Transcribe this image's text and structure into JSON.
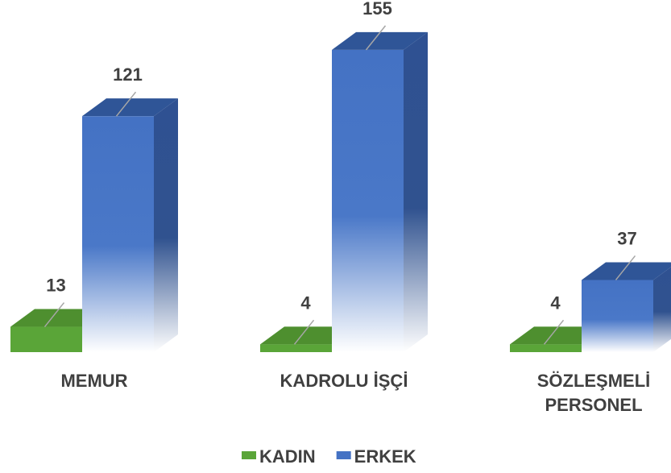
{
  "chart_data": {
    "type": "bar3d",
    "categories": [
      "MEMUR",
      "KADROLU İŞÇİ",
      "SÖZLEŞMELİ PERSONEL"
    ],
    "series": [
      {
        "name": "KADIN",
        "color": "#5aa538",
        "values": [
          13,
          4,
          4
        ]
      },
      {
        "name": "ERKEK",
        "color": "#4472c4",
        "values": [
          121,
          155,
          37
        ]
      }
    ]
  }
}
